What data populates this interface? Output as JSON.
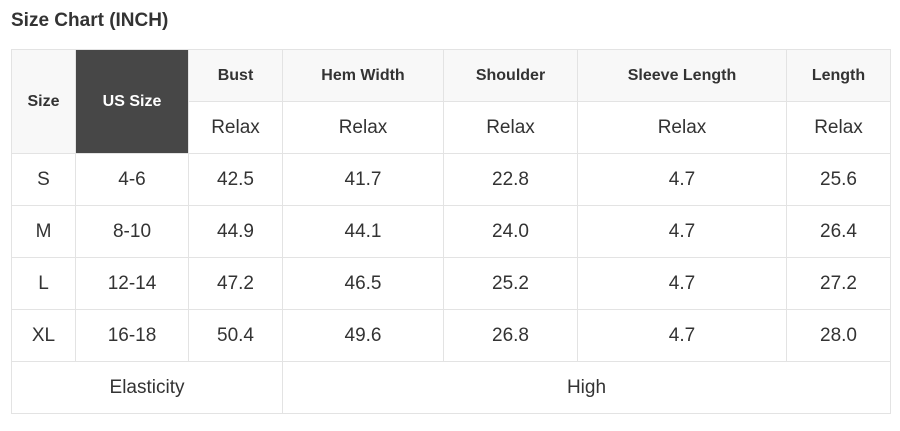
{
  "title": "Size Chart (INCH)",
  "headers": [
    "Size",
    "US Size",
    "Bust",
    "Hem Width",
    "Shoulder",
    "Sleeve Length",
    "Length"
  ],
  "subheader": "Relax",
  "rows": [
    [
      "S",
      "4-6",
      "42.5",
      "41.7",
      "22.8",
      "4.7",
      "25.6"
    ],
    [
      "M",
      "8-10",
      "44.9",
      "44.1",
      "24.0",
      "4.7",
      "26.4"
    ],
    [
      "L",
      "12-14",
      "47.2",
      "46.5",
      "25.2",
      "4.7",
      "27.2"
    ],
    [
      "XL",
      "16-18",
      "50.4",
      "49.6",
      "26.8",
      "4.7",
      "28.0"
    ]
  ],
  "footer": {
    "label": "Elasticity",
    "value": "High"
  },
  "colors": {
    "header_bg": "#f8f8f8",
    "highlight_bg": "#474747",
    "border": "#e3e3e3"
  }
}
